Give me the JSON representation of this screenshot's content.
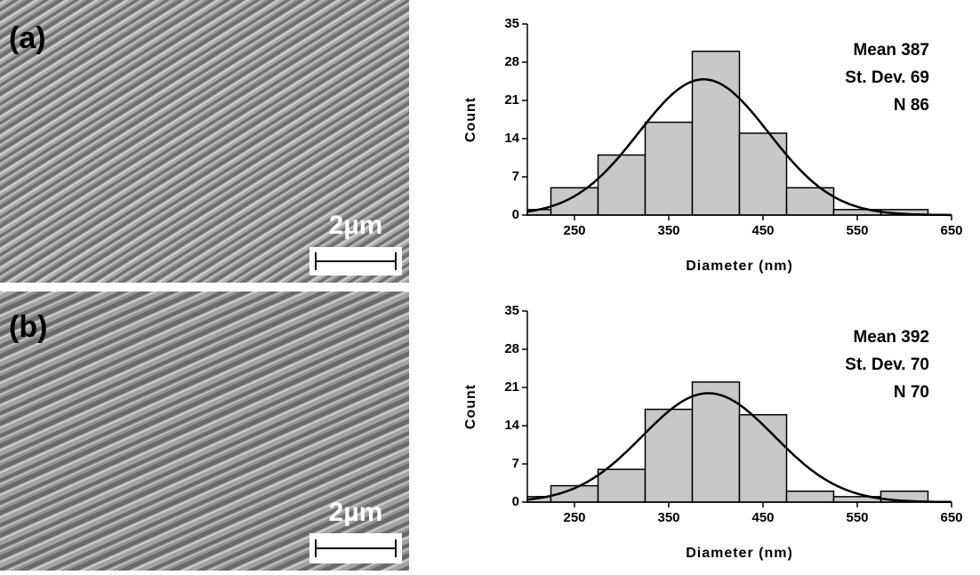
{
  "panels": [
    {
      "label": "(a)",
      "scale_bar": "2µm"
    },
    {
      "label": "(b)",
      "scale_bar": "2µm"
    }
  ],
  "chart_data": [
    {
      "type": "histogram",
      "xlabel": "Diameter (nm)",
      "ylabel": "Count",
      "bins": [
        200,
        225,
        275,
        325,
        375,
        425,
        475,
        525,
        575,
        625
      ],
      "values": [
        1,
        5,
        11,
        17,
        30,
        15,
        5,
        1,
        1
      ],
      "color": "#c8c8c8",
      "xlim": [
        200,
        650
      ],
      "xticks": [
        250,
        350,
        450,
        550,
        650
      ],
      "ylim": [
        0,
        35
      ],
      "yticks": [
        0,
        7,
        14,
        21,
        28,
        35
      ],
      "stats": [
        {
          "label": "Mean",
          "value": 387
        },
        {
          "label": "St. Dev.",
          "value": 69
        },
        {
          "label": "N",
          "value": 86
        }
      ]
    },
    {
      "type": "histogram",
      "xlabel": "Diameter (nm)",
      "ylabel": "Count",
      "bins": [
        200,
        225,
        275,
        325,
        375,
        425,
        475,
        525,
        575,
        625
      ],
      "values": [
        1,
        3,
        6,
        17,
        22,
        16,
        2,
        1,
        2
      ],
      "color": "#c8c8c8",
      "xlim": [
        200,
        650
      ],
      "xticks": [
        250,
        350,
        450,
        550,
        650
      ],
      "ylim": [
        0,
        35
      ],
      "yticks": [
        0,
        7,
        14,
        21,
        28,
        35
      ],
      "stats": [
        {
          "label": "Mean",
          "value": 392
        },
        {
          "label": "St. Dev.",
          "value": 70
        },
        {
          "label": "N",
          "value": 70
        }
      ]
    }
  ]
}
